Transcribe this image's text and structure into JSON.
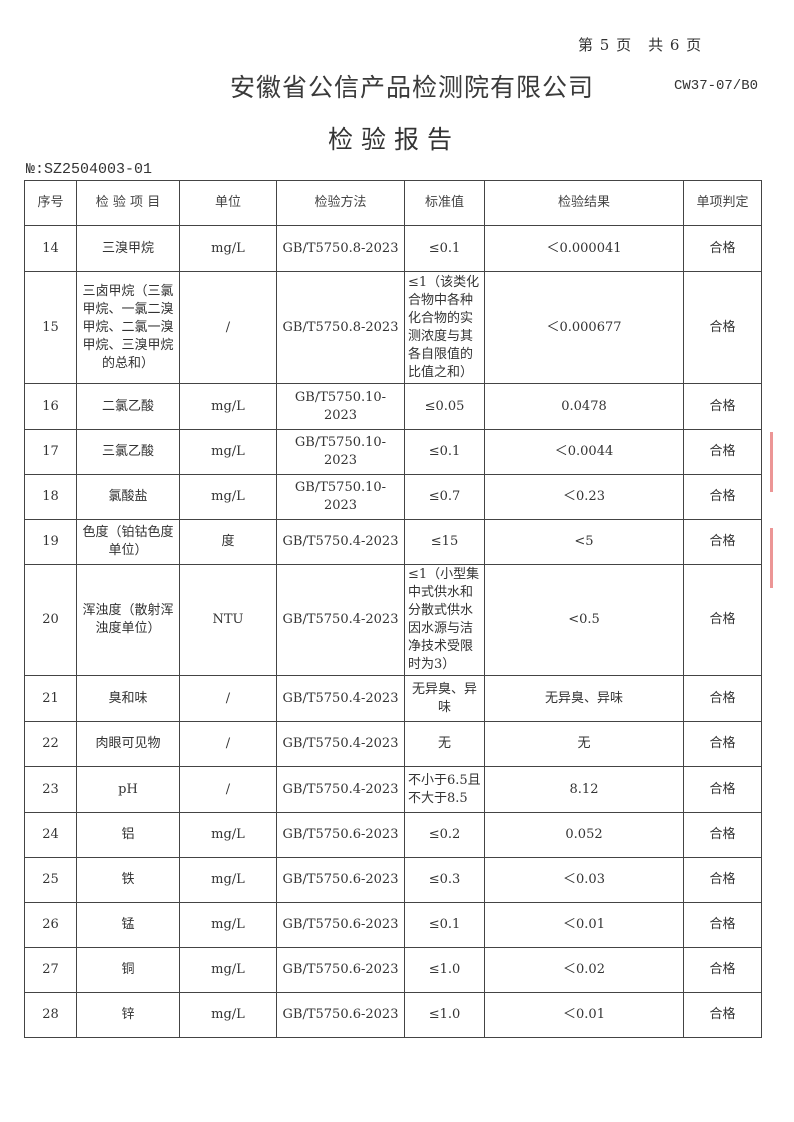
{
  "page_indicator": "第 5 页　共 6 页",
  "company": "安徽省公信产品检测院有限公司",
  "form_code": "CW37-07/B0",
  "title": "检验报告",
  "report_no": "№:SZ2504003-01",
  "headers": [
    "序号",
    "检 验 项 目",
    "单位",
    "检验方法",
    "标准值",
    "检验结果",
    "单项判定"
  ],
  "rows": [
    {
      "no": "14",
      "item": "三溴甲烷",
      "unit": "mg/L",
      "method": "GB/T5750.8-2023",
      "std": "≤0.1",
      "result": "＜0.000041",
      "verdict": "合格"
    },
    {
      "no": "15",
      "item": "三卤甲烷（三氯甲烷、一氯二溴甲烷、二氯一溴甲烷、三溴甲烷的总和）",
      "unit": "/",
      "method": "GB/T5750.8-2023",
      "std": "≤1（该类化合物中各种化合物的实测浓度与其各自限值的比值之和）",
      "result": "＜0.000677",
      "verdict": "合格"
    },
    {
      "no": "16",
      "item": "二氯乙酸",
      "unit": "mg/L",
      "method": "GB/T5750.10-2023",
      "std": "≤0.05",
      "result": "0.0478",
      "verdict": "合格"
    },
    {
      "no": "17",
      "item": "三氯乙酸",
      "unit": "mg/L",
      "method": "GB/T5750.10-2023",
      "std": "≤0.1",
      "result": "＜0.0044",
      "verdict": "合格"
    },
    {
      "no": "18",
      "item": "氯酸盐",
      "unit": "mg/L",
      "method": "GB/T5750.10-2023",
      "std": "≤0.7",
      "result": "＜0.23",
      "verdict": "合格"
    },
    {
      "no": "19",
      "item": "色度（铂钴色度单位）",
      "unit": "度",
      "method": "GB/T5750.4-2023",
      "std": "≤15",
      "result": "<5",
      "verdict": "合格"
    },
    {
      "no": "20",
      "item": "浑浊度（散射浑浊度单位）",
      "unit": "NTU",
      "method": "GB/T5750.4-2023",
      "std": "≤1（小型集中式供水和分散式供水因水源与洁净技术受限时为3）",
      "result": "<0.5",
      "verdict": "合格"
    },
    {
      "no": "21",
      "item": "臭和味",
      "unit": "/",
      "method": "GB/T5750.4-2023",
      "std": "无异臭、异味",
      "result": "无异臭、异味",
      "verdict": "合格"
    },
    {
      "no": "22",
      "item": "肉眼可见物",
      "unit": "/",
      "method": "GB/T5750.4-2023",
      "std": "无",
      "result": "无",
      "verdict": "合格"
    },
    {
      "no": "23",
      "item": "pH",
      "unit": "/",
      "method": "GB/T5750.4-2023",
      "std": "不小于6.5且不大于8.5",
      "result": "8.12",
      "verdict": "合格"
    },
    {
      "no": "24",
      "item": "铝",
      "unit": "mg/L",
      "method": "GB/T5750.6-2023",
      "std": "≤0.2",
      "result": "0.052",
      "verdict": "合格"
    },
    {
      "no": "25",
      "item": "铁",
      "unit": "mg/L",
      "method": "GB/T5750.6-2023",
      "std": "≤0.3",
      "result": "＜0.03",
      "verdict": "合格"
    },
    {
      "no": "26",
      "item": "锰",
      "unit": "mg/L",
      "method": "GB/T5750.6-2023",
      "std": "≤0.1",
      "result": "＜0.01",
      "verdict": "合格"
    },
    {
      "no": "27",
      "item": "铜",
      "unit": "mg/L",
      "method": "GB/T5750.6-2023",
      "std": "≤1.0",
      "result": "＜0.02",
      "verdict": "合格"
    },
    {
      "no": "28",
      "item": "锌",
      "unit": "mg/L",
      "method": "GB/T5750.6-2023",
      "std": "≤1.0",
      "result": "＜0.01",
      "verdict": "合格"
    }
  ]
}
